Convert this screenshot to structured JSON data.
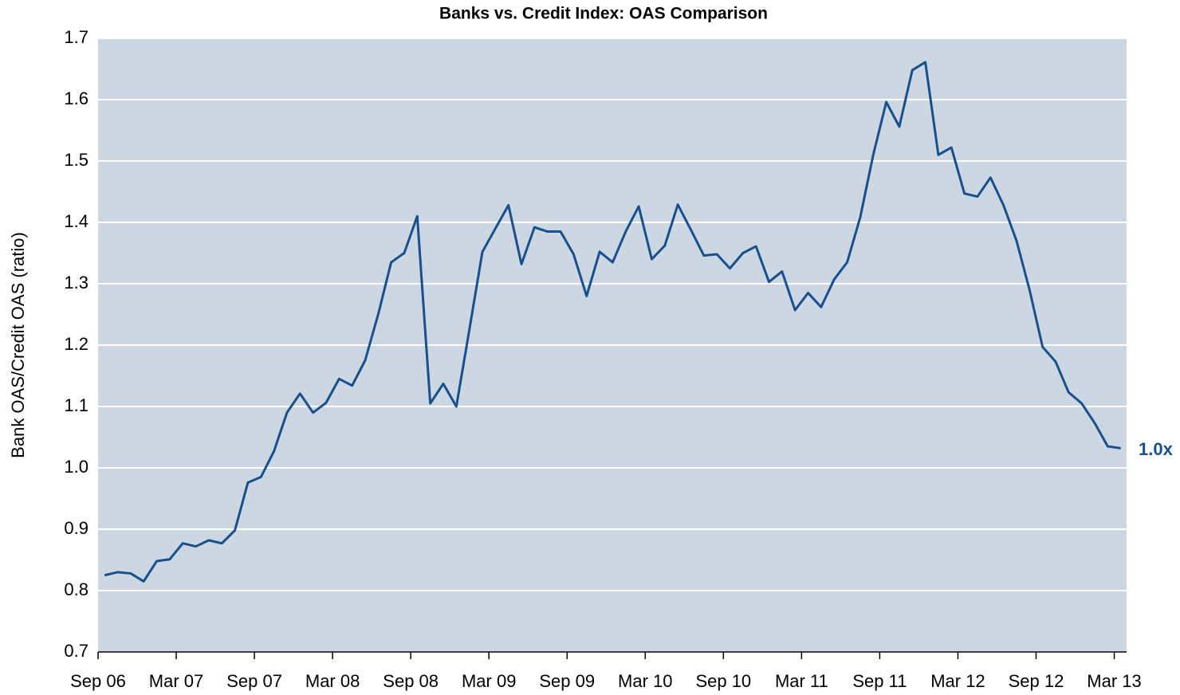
{
  "chart_data": {
    "type": "line",
    "title": "Banks vs. Credit Index: OAS Comparison",
    "y_label": "Bank OAS/Credit OAS (ratio)",
    "annotation": "1.0x",
    "categories": [
      "Sep 06",
      null,
      null,
      null,
      null,
      null,
      "Mar 07",
      null,
      null,
      null,
      null,
      null,
      "Sep 07",
      null,
      null,
      null,
      null,
      null,
      "Mar 08",
      null,
      null,
      null,
      null,
      null,
      "Sep 08",
      null,
      null,
      null,
      null,
      null,
      "Mar 09",
      null,
      null,
      null,
      null,
      null,
      "Sep 09",
      null,
      null,
      null,
      null,
      null,
      "Mar 10",
      null,
      null,
      null,
      null,
      null,
      "Sep 10",
      null,
      null,
      null,
      null,
      null,
      "Mar 11",
      null,
      null,
      null,
      null,
      null,
      "Sep 11",
      null,
      null,
      null,
      null,
      null,
      "Mar 12",
      null,
      null,
      null,
      null,
      null,
      "Sep 12",
      null,
      null,
      null,
      null,
      null,
      "Mar 13"
    ],
    "series": [
      {
        "name": "Bank OAS/Credit OAS",
        "color": "#17508f",
        "values": [
          0.825,
          0.83,
          0.828,
          0.815,
          0.848,
          0.851,
          0.877,
          0.872,
          0.882,
          0.877,
          0.898,
          0.976,
          0.985,
          1.027,
          1.09,
          1.121,
          1.09,
          1.106,
          1.145,
          1.134,
          1.175,
          1.25,
          1.335,
          1.35,
          1.41,
          1.105,
          1.137,
          1.1,
          1.225,
          1.352,
          1.39,
          1.428,
          1.332,
          1.392,
          1.385,
          1.385,
          1.348,
          1.28,
          1.352,
          1.335,
          1.385,
          1.426,
          1.34,
          1.362,
          1.429,
          1.388,
          1.346,
          1.348,
          1.325,
          1.35,
          1.361,
          1.303,
          1.32,
          1.257,
          1.285,
          1.262,
          1.307,
          1.335,
          1.408,
          1.51,
          1.596,
          1.556,
          1.648,
          1.661,
          1.51,
          1.522,
          1.447,
          1.442,
          1.473,
          1.428,
          1.37,
          1.29,
          1.197,
          1.173,
          1.123,
          1.105,
          1.073,
          1.035,
          1.032
        ]
      }
    ],
    "ylim": [
      0.7,
      1.7
    ],
    "yticks": [
      0.7,
      0.8,
      0.9,
      {
        "value": 1,
        "label": "1.0"
      },
      1.1,
      1.2,
      1.3,
      1.4,
      1.5,
      1.6,
      1.7
    ],
    "grid": true,
    "plot_background": "#cdd7e1"
  }
}
